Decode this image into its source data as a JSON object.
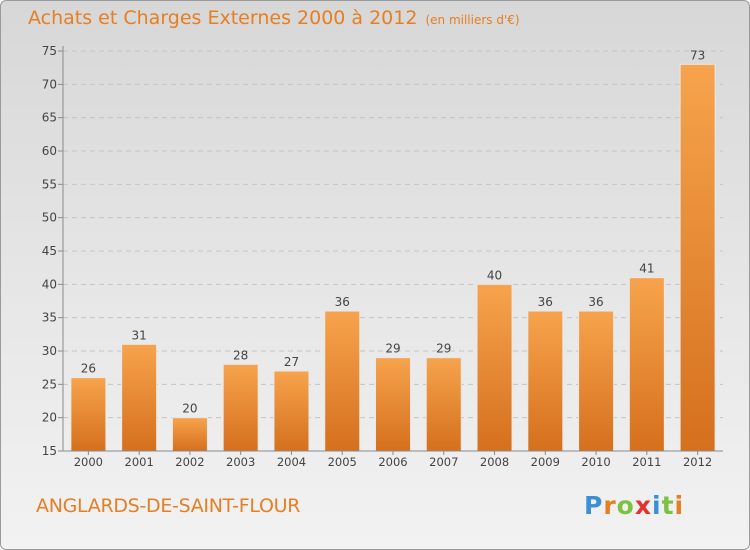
{
  "header": {
    "title": "Achats et Charges Externes 2000 à 2012",
    "unit": "(en milliers d'€)"
  },
  "footer": {
    "location": "ANGLARDS-DE-SAINT-FLOUR",
    "brand": "Proxiti"
  },
  "brand_colors": [
    "#3a8fd6",
    "#e67e22",
    "#7cc142",
    "#e6322e",
    "#3a8fd6",
    "#7cc142",
    "#e67e22"
  ],
  "chart_data": {
    "type": "bar",
    "title": "Achats et Charges Externes 2000 à 2012",
    "subtitle": "(en milliers d'€)",
    "categories": [
      "2000",
      "2001",
      "2002",
      "2003",
      "2004",
      "2005",
      "2006",
      "2007",
      "2008",
      "2009",
      "2010",
      "2011",
      "2012"
    ],
    "values": [
      26,
      31,
      20,
      28,
      27,
      36,
      29,
      29,
      40,
      36,
      36,
      41,
      73
    ],
    "ylim": [
      15,
      75
    ],
    "yticks": [
      15,
      20,
      25,
      30,
      35,
      40,
      45,
      50,
      55,
      60,
      65,
      70,
      75
    ],
    "grid": true,
    "bar_color_light": "#f7a34d",
    "bar_color_dark": "#d5701d",
    "axis_color": "#8a8a8a"
  }
}
